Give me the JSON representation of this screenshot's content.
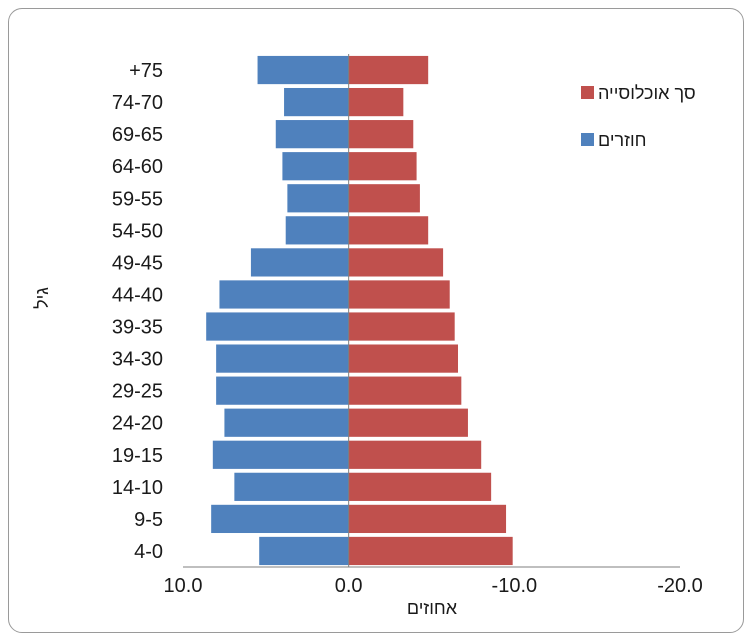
{
  "chart_data": {
    "type": "bar",
    "orientation": "horizontal",
    "categories": [
      "4-0",
      "9-5",
      "14-10",
      "19-15",
      "24-20",
      "29-25",
      "34-30",
      "39-35",
      "44-40",
      "49-45",
      "54-50",
      "59-55",
      "64-60",
      "69-65",
      "74-70",
      "+75"
    ],
    "series": [
      {
        "name": "סך אוכלוסייה",
        "color": "#c0504d",
        "values": [
          -9.9,
          -9.5,
          -8.6,
          -8.0,
          -7.2,
          -6.8,
          -6.6,
          -6.4,
          -6.1,
          -5.7,
          -4.8,
          -4.3,
          -4.1,
          -3.9,
          -3.3,
          -4.8
        ]
      },
      {
        "name": "חוזרים",
        "color": "#4f81bd",
        "values": [
          5.4,
          8.3,
          6.9,
          8.2,
          7.5,
          8.0,
          8.0,
          8.6,
          7.8,
          5.9,
          3.8,
          3.7,
          4.0,
          4.4,
          3.9,
          5.5
        ]
      }
    ],
    "xlim": [
      10,
      -20
    ],
    "x_ticks": [
      "10.0",
      "0.0",
      "-10.0",
      "-20.0"
    ],
    "xlabel": "אחוזים",
    "ylabel": "גיל",
    "legend_position": "right",
    "grid": false
  }
}
